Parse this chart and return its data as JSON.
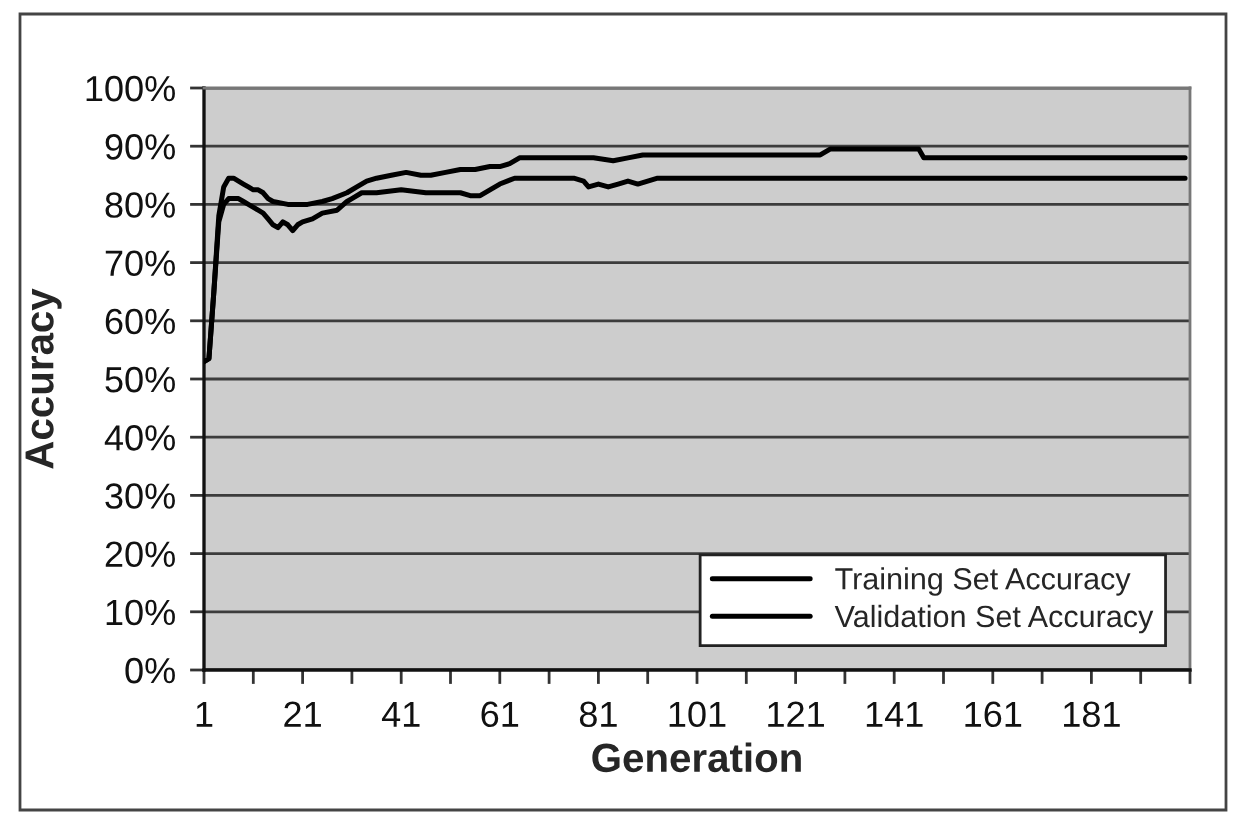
{
  "chart_data": {
    "type": "line",
    "xlabel": "Generation",
    "ylabel": "Accuracy",
    "series": [
      {
        "name": "Training Set Accuracy",
        "color": "#000000",
        "x": [
          1,
          2,
          3,
          4,
          5,
          6,
          7,
          8,
          9,
          10,
          11,
          12,
          13,
          14,
          15,
          18,
          22,
          25,
          27,
          30,
          32,
          34,
          36,
          39,
          42,
          45,
          47,
          50,
          53,
          56,
          59,
          61,
          63,
          65,
          68,
          72,
          76,
          80,
          84,
          87,
          90,
          93,
          97,
          100,
          105,
          110,
          115,
          120,
          126,
          128,
          130,
          135,
          140,
          145,
          146,
          147,
          150,
          160,
          170,
          180,
          190,
          200
        ],
        "values": [
          53,
          53.5,
          65,
          78,
          83,
          84.5,
          84.5,
          84,
          83.5,
          83,
          82.5,
          82.5,
          82,
          81,
          80.5,
          80,
          80,
          80.5,
          81,
          82,
          83,
          84,
          84.5,
          85,
          85.5,
          85,
          85,
          85.5,
          86,
          86,
          86.5,
          86.5,
          87,
          88,
          88,
          88,
          88,
          88,
          87.5,
          88,
          88.5,
          88.5,
          88.5,
          88.5,
          88.5,
          88.5,
          88.5,
          88.5,
          88.5,
          89.5,
          89.5,
          89.5,
          89.5,
          89.5,
          89.5,
          88,
          88,
          88,
          88,
          88,
          88,
          88
        ]
      },
      {
        "name": "Validation Set Accuracy",
        "color": "#000000",
        "x": [
          1,
          2,
          3,
          4,
          5,
          6,
          8,
          9,
          10,
          12,
          13,
          14,
          15,
          16,
          17,
          18,
          19,
          20,
          21,
          23,
          25,
          28,
          30,
          31,
          33,
          36,
          41,
          46,
          50,
          53,
          55,
          57,
          59,
          61,
          64,
          68,
          72,
          76,
          78,
          79,
          81,
          83,
          85,
          87,
          89,
          91,
          93,
          96,
          100,
          120,
          140,
          160,
          180,
          200
        ],
        "values": [
          53,
          53.5,
          65,
          77,
          80,
          81,
          81,
          80.5,
          80,
          79,
          78.5,
          77.5,
          76.5,
          76,
          77,
          76.5,
          75.5,
          76.5,
          77,
          77.5,
          78.5,
          79,
          80.5,
          81,
          82,
          82,
          82.5,
          82,
          82,
          82,
          81.5,
          81.5,
          82.5,
          83.5,
          84.5,
          84.5,
          84.5,
          84.5,
          84,
          83,
          83.5,
          83,
          83.5,
          84,
          83.5,
          84,
          84.5,
          84.5,
          84.5,
          84.5,
          84.5,
          84.5,
          84.5,
          84.5
        ]
      }
    ],
    "xlim": [
      1,
      201
    ],
    "xticks": [
      1,
      {
        "value": 11,
        "label": null
      },
      21,
      {
        "value": 31,
        "label": null
      },
      41,
      {
        "value": 51,
        "label": null
      },
      61,
      {
        "value": 71,
        "label": null
      },
      81,
      {
        "value": 91,
        "label": null
      },
      101,
      {
        "value": 111,
        "label": null
      },
      121,
      {
        "value": 131,
        "label": null
      },
      141,
      {
        "value": 151,
        "label": null
      },
      161,
      {
        "value": 171,
        "label": null
      },
      181,
      {
        "value": 191,
        "label": null
      },
      {
        "value": 201,
        "label": null
      }
    ],
    "ylim": [
      0,
      100
    ],
    "yticks": [
      {
        "value": 0,
        "label": "0%"
      },
      {
        "value": 10,
        "label": "10%"
      },
      {
        "value": 20,
        "label": "20%"
      },
      {
        "value": 30,
        "label": "30%"
      },
      {
        "value": 40,
        "label": "40%"
      },
      {
        "value": 50,
        "label": "50%"
      },
      {
        "value": 60,
        "label": "60%"
      },
      {
        "value": 70,
        "label": "70%"
      },
      {
        "value": 80,
        "label": "80%"
      },
      {
        "value": 90,
        "label": "90%"
      },
      {
        "value": 100,
        "label": "100%"
      }
    ],
    "grid": "y",
    "legend": "bottom right",
    "marker": "none",
    "line_style": "solid"
  }
}
